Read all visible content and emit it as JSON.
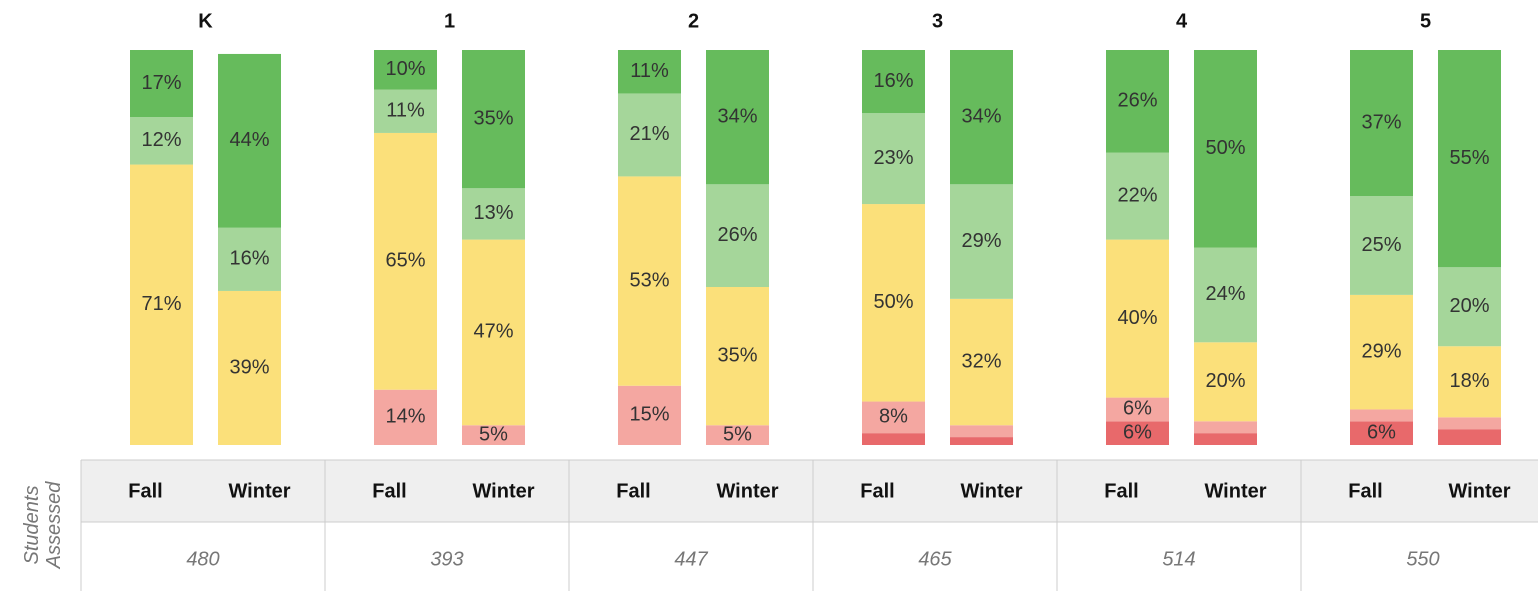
{
  "chart_data": {
    "type": "stacked_bar",
    "colors": [
      "#e8696b",
      "#f4a7a1",
      "#fbe07a",
      "#a5d69a",
      "#66bb5c"
    ],
    "ylim": [
      0,
      100
    ],
    "row_label": [
      "Students",
      "Assessed"
    ],
    "groups": [
      {
        "name": "K",
        "students": 480,
        "bars": [
          {
            "name": "Fall",
            "values": [
              0,
              0,
              71,
              12,
              17
            ],
            "value_labels": [
              null,
              null,
              "71%",
              "12%",
              "17%"
            ]
          },
          {
            "name": "Winter",
            "values": [
              0,
              0,
              39,
              16,
              44
            ],
            "value_labels": [
              null,
              null,
              "39%",
              "16%",
              "44%"
            ]
          }
        ]
      },
      {
        "name": "1",
        "students": 393,
        "bars": [
          {
            "name": "Fall",
            "values": [
              0,
              14,
              65,
              11,
              10
            ],
            "value_labels": [
              null,
              "14%",
              "65%",
              "11%",
              "10%"
            ]
          },
          {
            "name": "Winter",
            "values": [
              0,
              5,
              47,
              13,
              35
            ],
            "value_labels": [
              null,
              "5%",
              "47%",
              "13%",
              "35%"
            ]
          }
        ]
      },
      {
        "name": "2",
        "students": 447,
        "bars": [
          {
            "name": "Fall",
            "values": [
              0,
              15,
              53,
              21,
              11
            ],
            "value_labels": [
              null,
              "15%",
              "53%",
              "21%",
              "11%"
            ]
          },
          {
            "name": "Winter",
            "values": [
              0,
              5,
              35,
              26,
              34
            ],
            "value_labels": [
              null,
              "5%",
              "35%",
              "26%",
              "34%"
            ]
          }
        ]
      },
      {
        "name": "3",
        "students": 465,
        "bars": [
          {
            "name": "Fall",
            "values": [
              3,
              8,
              50,
              23,
              16
            ],
            "value_labels": [
              null,
              "8%",
              "50%",
              "23%",
              "16%"
            ]
          },
          {
            "name": "Winter",
            "values": [
              2,
              3,
              32,
              29,
              34
            ],
            "value_labels": [
              null,
              null,
              "32%",
              "29%",
              "34%"
            ]
          }
        ]
      },
      {
        "name": "4",
        "students": 514,
        "bars": [
          {
            "name": "Fall",
            "values": [
              6,
              6,
              40,
              22,
              26
            ],
            "value_labels": [
              "6%",
              "6%",
              "40%",
              "22%",
              "26%"
            ]
          },
          {
            "name": "Winter",
            "values": [
              3,
              3,
              20,
              24,
              50
            ],
            "value_labels": [
              null,
              null,
              "20%",
              "24%",
              "50%"
            ]
          }
        ]
      },
      {
        "name": "5",
        "students": 550,
        "bars": [
          {
            "name": "Fall",
            "values": [
              6,
              3,
              29,
              25,
              37
            ],
            "value_labels": [
              "6%",
              null,
              "29%",
              "25%",
              "37%"
            ]
          },
          {
            "name": "Winter",
            "values": [
              4,
              3,
              18,
              20,
              55
            ],
            "value_labels": [
              null,
              null,
              "18%",
              "20%",
              "55%"
            ]
          }
        ]
      }
    ]
  }
}
